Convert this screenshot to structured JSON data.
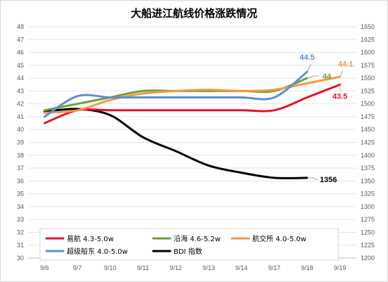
{
  "chart_data": {
    "type": "line",
    "title": "大船进江航线价格涨跌情况",
    "categories": [
      "9/6",
      "9/7",
      "9/10",
      "9/11",
      "9/12",
      "9/13",
      "9/14",
      "9/17",
      "9/18",
      "9/19"
    ],
    "y_left": {
      "min": 30,
      "max": 48,
      "step": 1
    },
    "y_right": {
      "min": 1200,
      "max": 1650,
      "step": 25
    },
    "series": [
      {
        "name": "易航 4.3-5.0w",
        "color": "#e8112d",
        "axis": "left",
        "values": [
          40.5,
          41.5,
          41.5,
          41.5,
          41.5,
          41.5,
          41.5,
          41.5,
          42.5,
          43.5
        ]
      },
      {
        "name": "沿海 4.6-5.2w",
        "color": "#70a037",
        "axis": "left",
        "values": [
          41.5,
          42.0,
          42.5,
          43.0,
          43.0,
          43.0,
          43.0,
          43.0,
          44.0,
          null
        ]
      },
      {
        "name": "航交所 4.0-5.0w",
        "color": "#f79646",
        "axis": "left",
        "values": [
          41.3,
          41.5,
          42.3,
          42.8,
          43.0,
          43.1,
          43.0,
          43.1,
          43.6,
          44.1
        ]
      },
      {
        "name": "超级船东 4.0-5.0w",
        "color": "#5b8fd6",
        "axis": "left",
        "values": [
          41.0,
          42.6,
          42.5,
          42.5,
          42.5,
          42.5,
          42.5,
          42.5,
          44.5,
          null
        ]
      },
      {
        "name": "BDI 指数",
        "color": "#000000",
        "axis": "right",
        "values": [
          1485,
          1490,
          1478,
          1435,
          1408,
          1380,
          1366,
          1356,
          1356,
          null
        ]
      }
    ],
    "annotations": [
      {
        "text": "44.5",
        "color": "#5b8fd6"
      },
      {
        "text": "44",
        "color": "#70a037"
      },
      {
        "text": "44.1",
        "color": "#f79646"
      },
      {
        "text": "43.5",
        "color": "#e8112d"
      },
      {
        "text": "1356",
        "color": "#000000"
      }
    ],
    "legend_position": "bottom",
    "grid": true
  }
}
